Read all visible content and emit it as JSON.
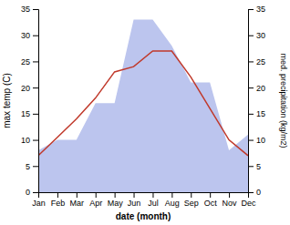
{
  "chart_data": {
    "type": "line",
    "categories": [
      "Jan",
      "Feb",
      "Mar",
      "Apr",
      "May",
      "Jun",
      "Jul",
      "Aug",
      "Sep",
      "Oct",
      "Nov",
      "Dec"
    ],
    "series": [
      {
        "type": "area",
        "color": "#bcc5ee",
        "axis": "y2",
        "values": [
          8,
          10,
          10,
          17,
          17,
          33,
          33,
          28,
          21,
          21,
          8,
          11
        ]
      },
      {
        "type": "line",
        "color": "#c0392b",
        "values": [
          7,
          10.5,
          14,
          18,
          23,
          24,
          27,
          27,
          22,
          16,
          10,
          7
        ]
      }
    ],
    "xlabel": "date (month)",
    "ylabel": "max temp (C)",
    "y2label": "med. precipitation (kg/m2)",
    "ylim": [
      0,
      35
    ],
    "yticks": [
      0,
      5,
      10,
      15,
      20,
      25,
      30,
      35
    ],
    "y2lim": [
      0,
      35
    ],
    "y2ticks": [
      0,
      5,
      10,
      15,
      20,
      25,
      30,
      35
    ],
    "grid": false
  }
}
